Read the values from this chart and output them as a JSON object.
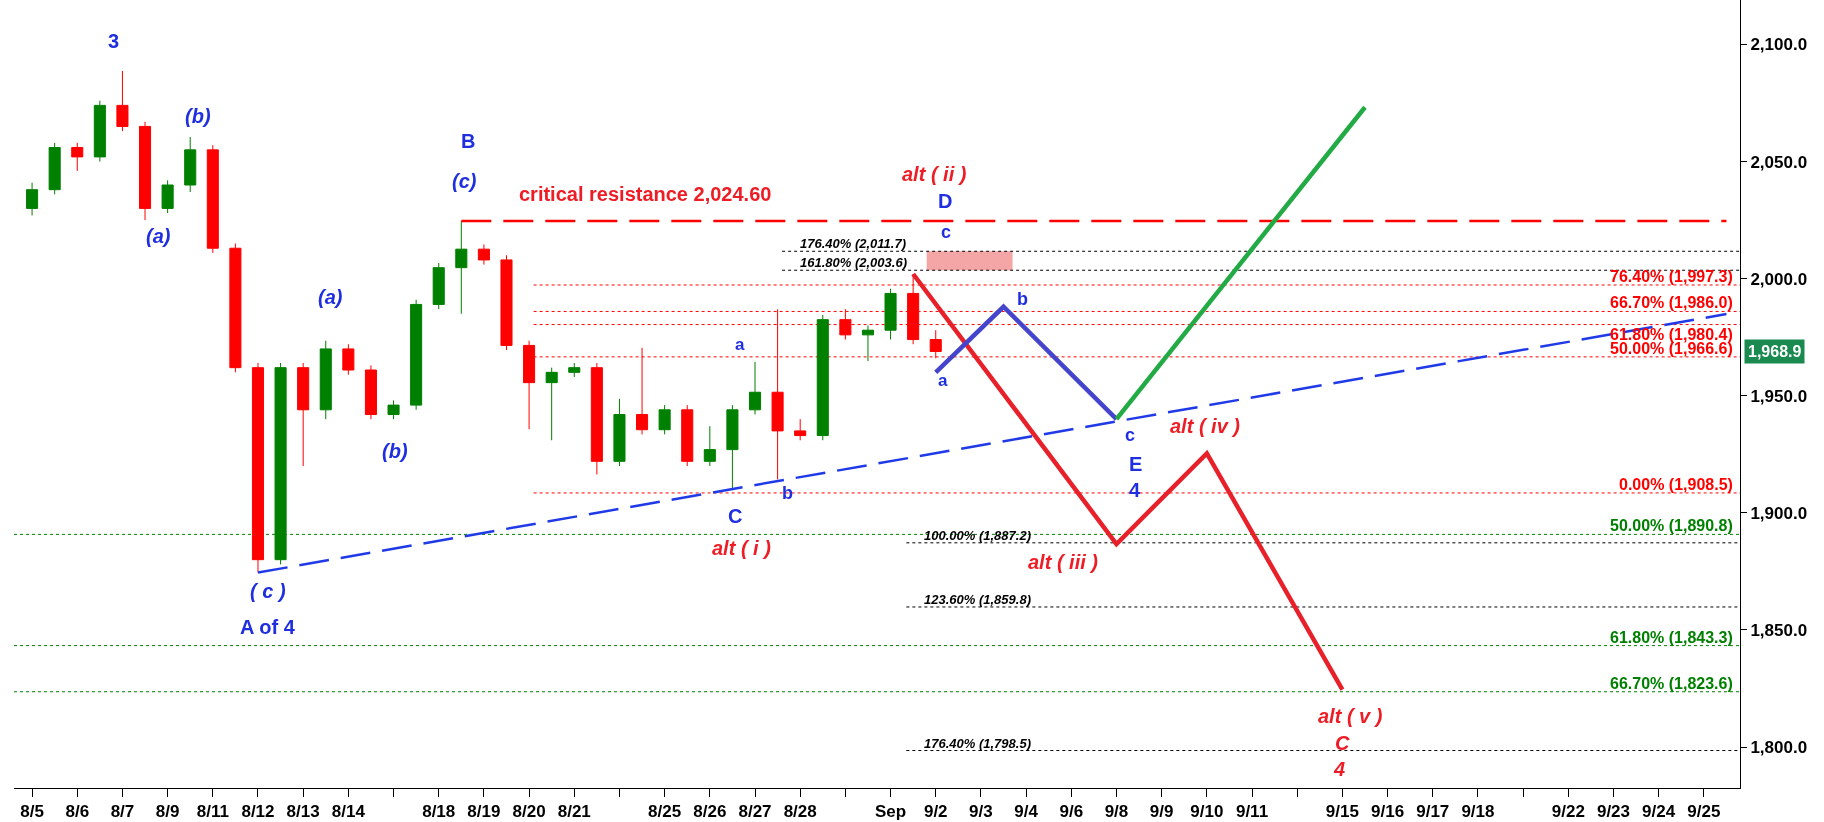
{
  "chart_data": {
    "type": "candlestick",
    "categories": [
      "8/5",
      null,
      "8/6",
      null,
      "8/7",
      null,
      "8/9",
      null,
      "8/11",
      null,
      "8/12",
      null,
      "8/13",
      null,
      "8/14",
      null,
      null,
      null,
      "8/18",
      null,
      "8/19",
      null,
      "8/20",
      null,
      "8/21",
      null,
      null,
      null,
      "8/25",
      null,
      "8/26",
      null,
      "8/27",
      null,
      "8/28",
      null,
      null,
      null,
      "Sep",
      null,
      "9/2",
      null,
      "9/3",
      null,
      "9/4",
      null,
      "9/6",
      null,
      "9/8",
      null,
      "9/9",
      null,
      "9/10",
      null,
      "9/11",
      null,
      null,
      null,
      "9/15",
      null,
      "9/16",
      null,
      "9/17",
      null,
      "9/18",
      null,
      null,
      null,
      "9/22",
      null,
      "9/23",
      null,
      "9/24",
      null,
      "9/25",
      null
    ],
    "ohlc": [
      [
        2030,
        2041,
        2027,
        2038
      ],
      [
        2038,
        2058,
        2036,
        2056
      ],
      [
        2056,
        2058,
        2046,
        2052
      ],
      [
        2052,
        2076,
        2050,
        2074
      ],
      [
        2074,
        2088.7,
        2063,
        2065
      ],
      [
        2065,
        2067,
        2025,
        2030
      ],
      [
        2030,
        2042,
        2028,
        2040
      ],
      [
        2040,
        2060.5,
        2037,
        2055
      ],
      [
        2055,
        2057,
        2011,
        2013
      ],
      [
        2013,
        2015,
        1960,
        1962
      ],
      [
        1962,
        1964,
        1874.5,
        1880
      ],
      [
        1880,
        1964,
        1878,
        1962
      ],
      [
        1962,
        1964,
        1920,
        1944
      ],
      [
        1944,
        1973.5,
        1940,
        1970
      ],
      [
        1970,
        1972,
        1959,
        1961
      ],
      [
        1961,
        1963,
        1940,
        1942
      ],
      [
        1942,
        1948,
        1940,
        1946
      ],
      [
        1946,
        1991,
        1944,
        1989
      ],
      [
        1989,
        2006.7,
        1987,
        2004.7
      ],
      [
        2004.7,
        2024.6,
        1985,
        2012.6
      ],
      [
        2012.6,
        2014.6,
        2006,
        2008
      ],
      [
        2008,
        2010,
        1969.5,
        1971.5
      ],
      [
        1971.5,
        1973.5,
        1935.7,
        1955.6
      ],
      [
        1955.6,
        1962,
        1931,
        1960
      ],
      [
        1960,
        1964,
        1958,
        1962
      ],
      [
        1962,
        1964,
        1916.4,
        1922
      ],
      [
        1922,
        1948.7,
        1920,
        1942
      ],
      [
        1942,
        1970.5,
        1933.5,
        1935.5
      ],
      [
        1935.5,
        1946,
        1933.5,
        1944
      ],
      [
        1944,
        1946,
        1920,
        1922
      ],
      [
        1922,
        1937,
        1920,
        1927
      ],
      [
        1927,
        1946,
        1909.7,
        1944
      ],
      [
        1944,
        1964.5,
        1942,
        1951.5
      ],
      [
        1951.5,
        1986.9,
        1914.3,
        1935
      ],
      [
        1935,
        1940,
        1931,
        1933
      ],
      [
        1933,
        1984.5,
        1931,
        1982.5
      ],
      [
        1982.5,
        1987,
        1974,
        1976
      ],
      [
        1976,
        1980,
        1964.8,
        1978
      ],
      [
        1978,
        1995.7,
        1974,
        1993.7
      ],
      [
        1993.7,
        2002,
        1972,
        1974
      ],
      [
        1974,
        1978,
        1966,
        1968.9
      ],
      null,
      null,
      null,
      null,
      null,
      null,
      null,
      null,
      null,
      null,
      null,
      null,
      null,
      null,
      null,
      null,
      null,
      null,
      null,
      null,
      null,
      null,
      null,
      null,
      null,
      null,
      null,
      null,
      null,
      null,
      null,
      null,
      null,
      null,
      null
    ],
    "colors": [
      "#008000",
      "#008000",
      "#ff0000",
      "#008000",
      "#ff0000",
      "#ff0000",
      "#008000",
      "#008000",
      "#ff0000",
      "#ff0000",
      "#ff0000",
      "#008000",
      "#ff0000",
      "#008000",
      "#ff0000",
      "#ff0000",
      "#008000",
      "#008000",
      "#008000",
      "#008000",
      "#ff0000",
      "#ff0000",
      "#ff0000",
      "#008000",
      "#008000",
      "#ff0000",
      "#008000",
      "#ff0000",
      "#008000",
      "#ff0000",
      "#008000",
      "#008000",
      "#008000",
      "#ff0000",
      "#ff0000",
      "#008000",
      "#ff0000",
      "#008000",
      "#008000",
      "#ff0000",
      "#ff0000",
      null,
      null,
      null,
      null,
      null,
      null,
      null,
      null,
      null,
      null,
      null,
      null,
      null,
      null,
      null,
      null,
      null,
      null,
      null,
      null,
      null,
      null,
      null,
      null,
      null,
      null,
      null,
      null,
      null,
      null,
      null,
      null,
      null,
      null,
      null
    ],
    "series": [
      {
        "type": "line",
        "color": "#1f3ae6",
        "line_style": "dashed",
        "values": [
          null,
          null,
          null,
          null,
          null,
          null,
          null,
          null,
          null,
          null,
          1874.5,
          null,
          null,
          null,
          null,
          null,
          null,
          null,
          null,
          null,
          null,
          null,
          null,
          null,
          null,
          null,
          null,
          null,
          null,
          null,
          null,
          null,
          null,
          null,
          null,
          null,
          null,
          null,
          null,
          null,
          null,
          null,
          null,
          null,
          null,
          null,
          null,
          null,
          null,
          null,
          null,
          null,
          null,
          null,
          null,
          null,
          null,
          null,
          null,
          null,
          null,
          null,
          null,
          null,
          null,
          null,
          null,
          null,
          null,
          null,
          null,
          null,
          null,
          null,
          null,
          1984.9
        ]
      },
      {
        "type": "line",
        "color": "#ff0000",
        "line_style": "dashed",
        "values": [
          null,
          null,
          null,
          null,
          null,
          null,
          null,
          null,
          null,
          null,
          null,
          null,
          null,
          null,
          null,
          null,
          null,
          null,
          null,
          2024.6,
          null,
          null,
          null,
          null,
          null,
          null,
          null,
          null,
          null,
          null,
          null,
          null,
          null,
          null,
          null,
          null,
          null,
          null,
          null,
          null,
          null,
          null,
          null,
          null,
          null,
          null,
          null,
          null,
          null,
          null,
          null,
          null,
          null,
          null,
          null,
          null,
          null,
          null,
          null,
          null,
          null,
          null,
          null,
          null,
          null,
          null,
          null,
          null,
          null,
          null,
          null,
          null,
          null,
          null,
          null,
          2024.6
        ]
      },
      {
        "type": "line",
        "color": "#e8202a",
        "line_style": "solid",
        "values": [
          null,
          null,
          null,
          null,
          null,
          null,
          null,
          null,
          null,
          null,
          null,
          null,
          null,
          null,
          null,
          null,
          null,
          null,
          null,
          null,
          null,
          null,
          null,
          null,
          null,
          null,
          null,
          null,
          null,
          null,
          null,
          null,
          null,
          null,
          null,
          null,
          null,
          null,
          null,
          2002,
          null,
          null,
          null,
          null,
          null,
          null,
          null,
          null,
          1886.7,
          null,
          null,
          null,
          1925.4,
          null,
          null,
          null,
          null,
          null,
          1824.5,
          null,
          null,
          null,
          null,
          null,
          null,
          null,
          null,
          null,
          null,
          null,
          null,
          null,
          null,
          null,
          null,
          null
        ]
      },
      {
        "type": "line",
        "color": "#4444cc",
        "line_style": "solid",
        "values": [
          null,
          null,
          null,
          null,
          null,
          null,
          null,
          null,
          null,
          null,
          null,
          null,
          null,
          null,
          null,
          null,
          null,
          null,
          null,
          null,
          null,
          null,
          null,
          null,
          null,
          null,
          null,
          null,
          null,
          null,
          null,
          null,
          null,
          null,
          null,
          null,
          null,
          null,
          null,
          null,
          1960,
          null,
          null,
          1988,
          null,
          null,
          null,
          null,
          1940,
          null,
          null,
          null,
          null,
          null,
          null,
          null,
          null,
          null,
          null,
          null,
          null,
          null,
          null,
          null,
          null,
          null,
          null,
          null,
          null,
          null,
          null,
          null,
          null,
          null,
          null,
          null
        ]
      },
      {
        "type": "line",
        "color": "#22aa44",
        "line_style": "solid",
        "values": [
          null,
          null,
          null,
          null,
          null,
          null,
          null,
          null,
          null,
          null,
          null,
          null,
          null,
          null,
          null,
          null,
          null,
          null,
          null,
          null,
          null,
          null,
          null,
          null,
          null,
          null,
          null,
          null,
          null,
          null,
          null,
          null,
          null,
          null,
          null,
          null,
          null,
          null,
          null,
          null,
          null,
          null,
          null,
          null,
          null,
          null,
          null,
          null,
          1940,
          null,
          null,
          null,
          null,
          null,
          null,
          null,
          null,
          null,
          null,
          2073.2,
          null,
          null,
          null,
          null,
          null,
          null,
          null,
          null,
          null,
          null,
          null,
          null,
          null,
          null,
          null,
          null
        ]
      }
    ],
    "ref_lines": [
      {
        "axis": "y",
        "value": 1997.3,
        "label": "76.40% (1,997.3)",
        "color": "#ff0000",
        "line_style": "dotted"
      },
      {
        "axis": "y",
        "value": 1986.0,
        "label": "66.70% (1,986.0)",
        "color": "#ff0000",
        "line_style": "dotted"
      },
      {
        "axis": "y",
        "value": 1980.4,
        "label": "61.80% (1,980.4)",
        "color": "#ff0000",
        "line_style": "dotted"
      },
      {
        "axis": "y",
        "value": 1966.6,
        "label": "50.00% (1,966.6)",
        "color": "#ff0000",
        "line_style": "dotted"
      },
      {
        "axis": "y",
        "value": 1908.5,
        "label": "0.00% (1,908.5)",
        "color": "#ff0000",
        "line_style": "dotted"
      },
      {
        "axis": "y",
        "value": 1890.8,
        "label": "50.00% (1,890.8)",
        "color": "#008000",
        "line_style": "dotted"
      },
      {
        "axis": "y",
        "value": 1843.3,
        "label": "61.80% (1,843.3)",
        "color": "#008000",
        "line_style": "dotted"
      },
      {
        "axis": "y",
        "value": 1823.6,
        "label": "66.70% (1,823.6)",
        "color": "#008000",
        "line_style": "dotted"
      },
      {
        "axis": "y",
        "value": 2011.7,
        "label": "176.40% (2,011.7)",
        "color": "#000000",
        "line_style": "dotted"
      },
      {
        "axis": "y",
        "value": 2003.6,
        "label": "161.80% (2,003.6)",
        "color": "#000000",
        "line_style": "dotted"
      },
      {
        "axis": "y",
        "value": 1887.2,
        "label": "100.00% (1,887.2)",
        "color": "#000000",
        "line_style": "dotted"
      },
      {
        "axis": "y",
        "value": 1859.8,
        "label": "123.60% (1,859.8)",
        "color": "#000000",
        "line_style": "dotted"
      },
      {
        "axis": "y",
        "value": 1798.5,
        "label": "176.40% (1,798.5)",
        "color": "#000000",
        "line_style": "dotted"
      }
    ],
    "bands": [
      {
        "axis": "y",
        "from": 2003.6,
        "to": 2011.7,
        "color": "#f4a6a6"
      }
    ],
    "annotations": [
      "3",
      "(a)",
      "(b)",
      "( c )",
      "A of 4",
      "(a)",
      "(b)",
      "B",
      "(c)",
      "critical resistance 2,024.60",
      "a",
      "C",
      "alt ( i )",
      "b",
      "alt ( ii )",
      "D",
      "c",
      "a",
      "b",
      "c",
      "E",
      "4",
      "alt ( iii )",
      "alt ( iv )",
      "alt ( v )",
      "C",
      "4",
      "1,968.9"
    ],
    "ylim": [
      1782.5,
      2119
    ],
    "yticks": [
      {
        "value": 1800,
        "label": "1,800.0"
      },
      {
        "value": 1850,
        "label": "1,850.0"
      },
      {
        "value": 1900,
        "label": "1,900.0"
      },
      {
        "value": 1950,
        "label": "1,950.0"
      },
      {
        "value": 2000,
        "label": "2,000.0"
      },
      {
        "value": 2050,
        "label": "2,050.0"
      },
      {
        "value": 2100,
        "label": "2,100.0"
      }
    ],
    "grid": false
  }
}
